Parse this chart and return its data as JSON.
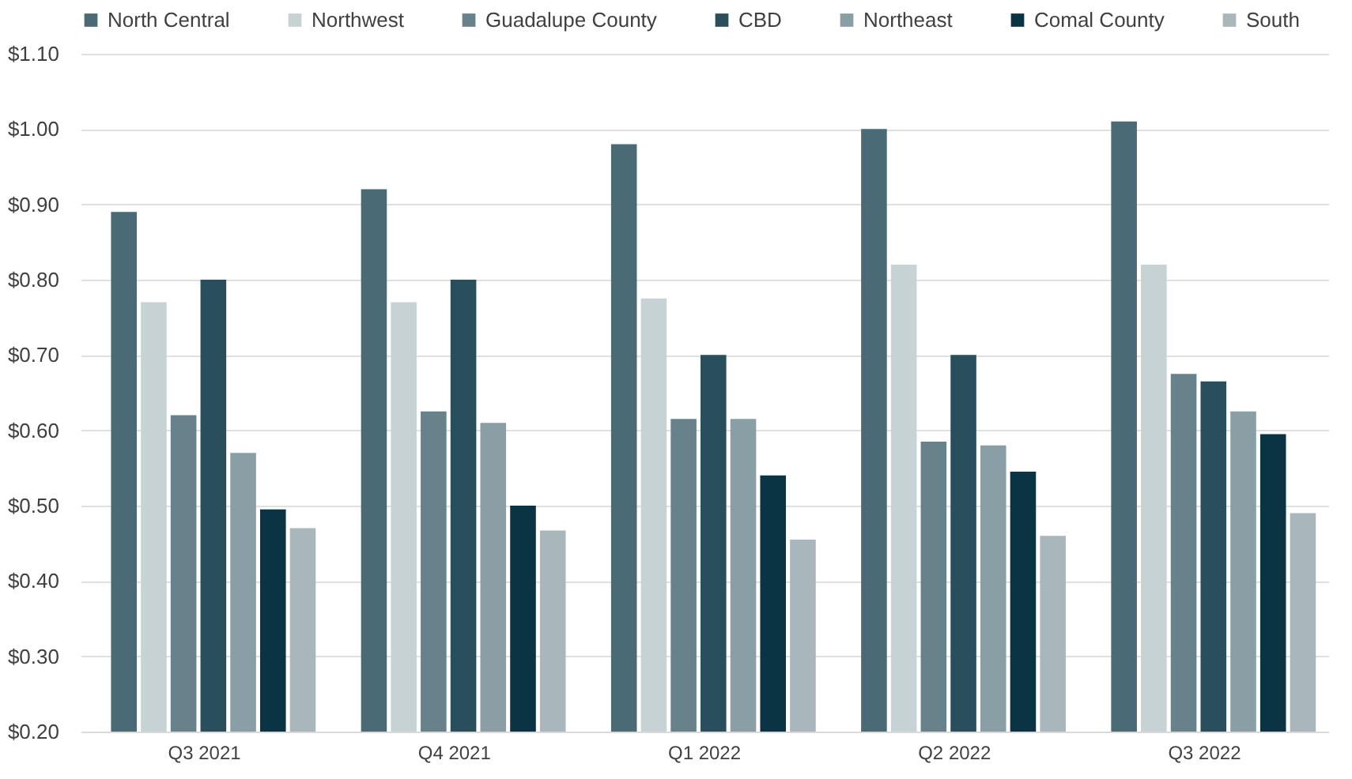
{
  "chart_data": {
    "type": "bar",
    "categories": [
      "Q3 2021",
      "Q4 2021",
      "Q1 2022",
      "Q2 2022",
      "Q3 2022"
    ],
    "series": [
      {
        "name": "North Central",
        "color": "#4a6b75",
        "values": [
          0.89,
          0.92,
          0.98,
          1.0,
          1.01
        ]
      },
      {
        "name": "Northwest",
        "color": "#c6d2d4",
        "values": [
          0.77,
          0.77,
          0.775,
          0.82,
          0.82
        ]
      },
      {
        "name": "Guadalupe County",
        "color": "#67828a",
        "values": [
          0.62,
          0.625,
          0.615,
          0.585,
          0.675
        ]
      },
      {
        "name": "CBD",
        "color": "#294f5c",
        "values": [
          0.8,
          0.8,
          0.7,
          0.7,
          0.665
        ]
      },
      {
        "name": "Northeast",
        "color": "#8a9fa5",
        "values": [
          0.57,
          0.61,
          0.615,
          0.58,
          0.625
        ]
      },
      {
        "name": "Comal County",
        "color": "#0a3443",
        "values": [
          0.495,
          0.5,
          0.54,
          0.545,
          0.595
        ]
      },
      {
        "name": "South",
        "color": "#a9b6bb",
        "values": [
          0.47,
          0.467,
          0.455,
          0.46,
          0.49
        ]
      }
    ],
    "ylim": [
      0.2,
      1.1
    ],
    "yticks": [
      {
        "value": 0.2,
        "label": "$0.20"
      },
      {
        "value": 0.3,
        "label": "$0.30"
      },
      {
        "value": 0.4,
        "label": "$0.40"
      },
      {
        "value": 0.5,
        "label": "$0.50"
      },
      {
        "value": 0.6,
        "label": "$0.60"
      },
      {
        "value": 0.7,
        "label": "$0.70"
      },
      {
        "value": 0.8,
        "label": "$0.80"
      },
      {
        "value": 0.9,
        "label": "$0.90"
      },
      {
        "value": 1.0,
        "label": "$1.00"
      },
      {
        "value": 1.1,
        "label": "$1.10"
      }
    ],
    "grid": "y",
    "legend": "top"
  }
}
